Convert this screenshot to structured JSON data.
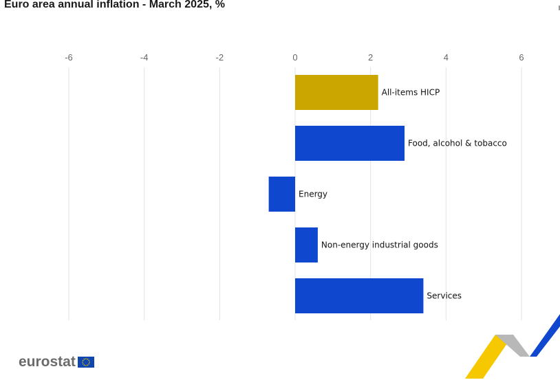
{
  "title": "Euro area annual inflation - March 2025, %",
  "logo_text": "eurostat",
  "colors": {
    "highlight_bar": "#cca600",
    "bar": "#0f47cf",
    "grid": "#e3e3e3",
    "ribbon_yellow": "#f5c800",
    "ribbon_grey": "#b8b8b8",
    "ribbon_blue": "#0f47cf",
    "flag_blue": "#0f47af",
    "flag_star": "#ffcc00"
  },
  "chart_data": {
    "type": "bar",
    "orientation": "horizontal",
    "categories": [
      "All-items HICP",
      "Food, alcohol & tobacco",
      "Energy",
      "Non-energy industrial goods",
      "Services"
    ],
    "values": [
      2.2,
      2.9,
      -0.7,
      0.6,
      3.4
    ],
    "highlight": [
      "All-items HICP"
    ],
    "xlim": [
      -6,
      6
    ],
    "x_ticks": [
      "-6",
      "-4",
      "-2",
      "0",
      "2",
      "4",
      "6"
    ],
    "x_tick_values": [
      -6,
      -4,
      -2,
      0,
      2,
      4,
      6
    ],
    "grid": true,
    "axis_position": "top"
  }
}
